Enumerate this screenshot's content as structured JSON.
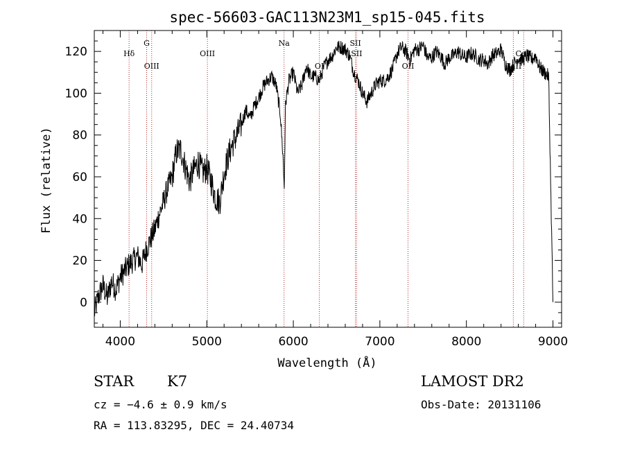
{
  "chart_data": {
    "type": "line",
    "title": "spec-56603-GAC113N23M1_sp15-045.fits",
    "xlabel": "Wavelength (Å)",
    "ylabel": "Flux (relative)",
    "xlim": [
      3700,
      9100
    ],
    "ylim": [
      -12,
      130
    ],
    "xticks": [
      4000,
      5000,
      6000,
      7000,
      8000,
      9000
    ],
    "yticks": [
      0,
      20,
      40,
      60,
      80,
      100,
      120
    ],
    "grid": false,
    "lines": [
      {
        "label": "Hδ",
        "wavelength": 4102,
        "flux": 119
      },
      {
        "label": "G",
        "wavelength": 4305,
        "flux": 124
      },
      {
        "label": "OIII",
        "wavelength": 4363,
        "flux": 113
      },
      {
        "label": "OIII",
        "wavelength": 5007,
        "flux": 119
      },
      {
        "label": "Na",
        "wavelength": 5893,
        "flux": 124
      },
      {
        "label": "OI",
        "wavelength": 6300,
        "flux": 113
      },
      {
        "label": "SII",
        "wavelength": 6717,
        "flux": 124
      },
      {
        "label": "SII",
        "wavelength": 6731,
        "flux": 119
      },
      {
        "label": "OII",
        "wavelength": 7325,
        "flux": 113
      },
      {
        "label": "CaII",
        "wavelength": 8542,
        "flux": 113
      },
      {
        "label": "CaII",
        "wavelength": 8662,
        "flux": 119
      }
    ],
    "series": [
      {
        "x": [
          3700,
          3750,
          3800,
          3850,
          3900,
          3950,
          4000,
          4050,
          4100,
          4150,
          4200,
          4250,
          4300,
          4350,
          4400,
          4450,
          4500,
          4550,
          4600,
          4650,
          4700,
          4750,
          4800,
          4850,
          4900,
          4950,
          5000,
          5050,
          5100,
          5150,
          5200,
          5250,
          5300,
          5350,
          5400,
          5450,
          5500,
          5550,
          5600,
          5650,
          5700,
          5750,
          5800,
          5850,
          5880,
          5895,
          5910,
          5950,
          6000,
          6050,
          6100,
          6150,
          6200,
          6250,
          6300,
          6350,
          6400,
          6450,
          6500,
          6550,
          6600,
          6650,
          6700,
          6750,
          6800,
          6850,
          6900,
          6950,
          7000,
          7050,
          7100,
          7150,
          7200,
          7250,
          7300,
          7350,
          7400,
          7450,
          7500,
          7550,
          7600,
          7650,
          7700,
          7750,
          7800,
          7850,
          7900,
          7950,
          8000,
          8050,
          8100,
          8150,
          8200,
          8250,
          8300,
          8350,
          8400,
          8450,
          8500,
          8550,
          8600,
          8650,
          8700,
          8750,
          8800,
          8850,
          8900,
          8950,
          9000
        ],
        "y": [
          -5,
          3,
          8,
          2,
          10,
          6,
          12,
          15,
          18,
          20,
          22,
          18,
          25,
          30,
          35,
          42,
          48,
          55,
          60,
          72,
          73,
          65,
          58,
          63,
          67,
          62,
          64,
          58,
          50,
          48,
          62,
          70,
          76,
          80,
          85,
          92,
          88,
          94,
          98,
          103,
          106,
          108,
          104,
          90,
          70,
          55,
          95,
          106,
          110,
          100,
          104,
          113,
          108,
          108,
          106,
          112,
          116,
          118,
          122,
          122,
          121,
          118,
          110,
          106,
          100,
          96,
          100,
          104,
          106,
          106,
          108,
          112,
          119,
          122,
          120,
          116,
          121,
          121,
          123,
          117,
          117,
          120,
          118,
          114,
          117,
          118,
          120,
          118,
          117,
          119,
          118,
          116,
          116,
          114,
          118,
          119,
          121,
          114,
          111,
          114,
          117,
          116,
          118,
          116,
          118,
          112,
          110,
          108,
          0
        ]
      }
    ]
  },
  "info": {
    "object_class": "STAR",
    "subclass": "K7",
    "cz": "cz = −4.6 ± 0.9 km/s",
    "coords": "RA = 113.83295, DEC =  24.40734",
    "survey": "LAMOST DR2",
    "obs_date": "Obs-Date: 20131106"
  }
}
